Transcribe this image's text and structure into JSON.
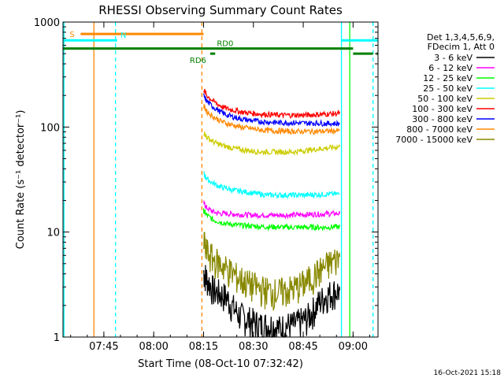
{
  "chart_data": {
    "type": "line",
    "title": "RHESSI Observing Summary Count Rates",
    "xlabel": "Start Time (08-Oct-10 07:32:42)",
    "ylabel": "Count Rate (s⁻¹ detector⁻¹)",
    "yscale": "log",
    "xrange": [
      "07:32:42",
      "09:07:30"
    ],
    "ylim": [
      1,
      1000
    ],
    "x_ticks": [
      "07:45",
      "08:00",
      "08:15",
      "08:30",
      "08:45",
      "09:00"
    ],
    "y_ticks": [
      "1",
      "10",
      "100",
      "1000"
    ],
    "legend": {
      "position": "right",
      "header": [
        "Det 1,3,4,5,6,9,",
        "FDecim 1, Att 0"
      ]
    },
    "data_gap": {
      "before": "08:15:00",
      "after": "08:56:30"
    },
    "series": [
      {
        "name": "3 - 6 keV",
        "color": "#000000",
        "x": [
          "08:15:00",
          "08:16:00",
          "08:18:00",
          "08:20:00",
          "08:22:00",
          "08:24:00",
          "08:26:00",
          "08:28:00",
          "08:30:00",
          "08:32:00",
          "08:34:00",
          "08:36:00",
          "08:38:00",
          "08:40:00",
          "08:42:00",
          "08:44:00",
          "08:46:00",
          "08:48:00",
          "08:50:00",
          "08:52:00",
          "08:54:00",
          "08:56:00"
        ],
        "values": [
          4.2,
          3.6,
          2.8,
          2.6,
          2.4,
          1.9,
          1.6,
          1.5,
          1.4,
          1.3,
          1.3,
          1.3,
          1.2,
          1.3,
          1.3,
          1.4,
          1.5,
          1.8,
          2.2,
          2.5,
          2.7,
          2.8
        ]
      },
      {
        "name": "6 - 12 keV",
        "color": "#ff00ff",
        "x": [
          "08:15:00",
          "08:16:00",
          "08:18:00",
          "08:20:00",
          "08:22:00",
          "08:24:00",
          "08:26:00",
          "08:28:00",
          "08:30:00",
          "08:32:00",
          "08:34:00",
          "08:36:00",
          "08:38:00",
          "08:40:00",
          "08:42:00",
          "08:44:00",
          "08:46:00",
          "08:48:00",
          "08:50:00",
          "08:52:00",
          "08:54:00",
          "08:56:00"
        ],
        "values": [
          19,
          17,
          15.5,
          15,
          15,
          14.8,
          14.7,
          14.6,
          14.5,
          14.5,
          14.5,
          14.5,
          14.5,
          14.5,
          14.5,
          14.6,
          14.7,
          14.8,
          14.8,
          14.9,
          15,
          15
        ]
      },
      {
        "name": "12 - 25 keV",
        "color": "#00ff00",
        "x": [
          "08:15:00",
          "08:16:00",
          "08:18:00",
          "08:20:00",
          "08:22:00",
          "08:24:00",
          "08:26:00",
          "08:28:00",
          "08:30:00",
          "08:32:00",
          "08:34:00",
          "08:36:00",
          "08:38:00",
          "08:40:00",
          "08:42:00",
          "08:44:00",
          "08:46:00",
          "08:48:00",
          "08:50:00",
          "08:52:00",
          "08:54:00",
          "08:56:00"
        ],
        "values": [
          16,
          14.5,
          13,
          12.5,
          12,
          11.8,
          11.6,
          11.5,
          11.4,
          11.3,
          11.2,
          11.2,
          11.2,
          11.1,
          11.1,
          11.1,
          11.1,
          11.1,
          11.1,
          11.1,
          11.2,
          11.2
        ]
      },
      {
        "name": "25 - 50 keV",
        "color": "#00ffff",
        "x": [
          "08:15:00",
          "08:16:00",
          "08:18:00",
          "08:20:00",
          "08:22:00",
          "08:24:00",
          "08:26:00",
          "08:28:00",
          "08:30:00",
          "08:32:00",
          "08:34:00",
          "08:36:00",
          "08:38:00",
          "08:40:00",
          "08:42:00",
          "08:44:00",
          "08:46:00",
          "08:48:00",
          "08:50:00",
          "08:52:00",
          "08:54:00",
          "08:56:00"
        ],
        "values": [
          36,
          32,
          29,
          27,
          26,
          25,
          24.5,
          24,
          23.5,
          23,
          22.5,
          22.5,
          22.5,
          22.5,
          22.5,
          22.5,
          22.5,
          22.7,
          22.8,
          23,
          23,
          23
        ]
      },
      {
        "name": "50 - 100 keV",
        "color": "#cccc00",
        "x": [
          "08:15:00",
          "08:16:00",
          "08:18:00",
          "08:20:00",
          "08:22:00",
          "08:24:00",
          "08:26:00",
          "08:28:00",
          "08:30:00",
          "08:32:00",
          "08:34:00",
          "08:36:00",
          "08:38:00",
          "08:40:00",
          "08:42:00",
          "08:44:00",
          "08:46:00",
          "08:48:00",
          "08:50:00",
          "08:52:00",
          "08:54:00",
          "08:56:00"
        ],
        "values": [
          90,
          80,
          72,
          68,
          65,
          63,
          61,
          60,
          59,
          58,
          58,
          58,
          58,
          58,
          58,
          59,
          60,
          61,
          62,
          63,
          64,
          65
        ]
      },
      {
        "name": "100 - 300 keV",
        "color": "#ff0000",
        "x": [
          "08:15:00",
          "08:16:00",
          "08:18:00",
          "08:20:00",
          "08:22:00",
          "08:24:00",
          "08:26:00",
          "08:28:00",
          "08:30:00",
          "08:32:00",
          "08:34:00",
          "08:36:00",
          "08:38:00",
          "08:40:00",
          "08:42:00",
          "08:44:00",
          "08:46:00",
          "08:48:00",
          "08:50:00",
          "08:52:00",
          "08:54:00",
          "08:56:00"
        ],
        "values": [
          230,
          200,
          175,
          160,
          150,
          145,
          140,
          137,
          135,
          133,
          132,
          131,
          130,
          130,
          130,
          130,
          130,
          131,
          132,
          133,
          134,
          135
        ]
      },
      {
        "name": "300 - 800 keV",
        "color": "#0000ff",
        "x": [
          "08:15:00",
          "08:16:00",
          "08:18:00",
          "08:20:00",
          "08:22:00",
          "08:24:00",
          "08:26:00",
          "08:28:00",
          "08:30:00",
          "08:32:00",
          "08:34:00",
          "08:36:00",
          "08:38:00",
          "08:40:00",
          "08:42:00",
          "08:44:00",
          "08:46:00",
          "08:48:00",
          "08:50:00",
          "08:52:00",
          "08:54:00",
          "08:56:00"
        ],
        "values": [
          200,
          175,
          155,
          140,
          130,
          125,
          120,
          117,
          115,
          113,
          112,
          111,
          110,
          110,
          110,
          109,
          109,
          109,
          109,
          108,
          108,
          108
        ]
      },
      {
        "name": "800 - 7000 keV",
        "color": "#ff8800",
        "x": [
          "08:15:00",
          "08:16:00",
          "08:18:00",
          "08:20:00",
          "08:22:00",
          "08:24:00",
          "08:26:00",
          "08:28:00",
          "08:30:00",
          "08:32:00",
          "08:34:00",
          "08:36:00",
          "08:38:00",
          "08:40:00",
          "08:42:00",
          "08:44:00",
          "08:46:00",
          "08:48:00",
          "08:50:00",
          "08:52:00",
          "08:54:00",
          "08:56:00"
        ],
        "values": [
          160,
          140,
          125,
          115,
          108,
          104,
          100,
          98,
          96,
          94,
          93,
          92,
          92,
          91,
          91,
          91,
          91,
          91,
          91,
          91,
          92,
          92
        ]
      },
      {
        "name": "7000 - 15000 keV",
        "color": "#888800",
        "x": [
          "08:15:00",
          "08:16:00",
          "08:18:00",
          "08:20:00",
          "08:22:00",
          "08:24:00",
          "08:26:00",
          "08:28:00",
          "08:30:00",
          "08:32:00",
          "08:34:00",
          "08:36:00",
          "08:38:00",
          "08:40:00",
          "08:42:00",
          "08:44:00",
          "08:46:00",
          "08:48:00",
          "08:50:00",
          "08:52:00",
          "08:54:00",
          "08:56:00"
        ],
        "values": [
          8,
          6.5,
          5.5,
          5,
          4.5,
          4,
          3.6,
          3.3,
          3.1,
          2.9,
          2.8,
          2.7,
          2.7,
          2.8,
          2.9,
          3.1,
          3.4,
          3.8,
          4.3,
          4.8,
          5.3,
          5.8
        ]
      }
    ],
    "status_flags": [
      {
        "label": "S",
        "color": "#ff8800",
        "intervals": [
          [
            "07:38:00",
            "08:15:00"
          ]
        ],
        "level": 770
      },
      {
        "label": "N",
        "color": "#00ffff",
        "intervals": [
          [
            "07:32:42",
            "07:49:00"
          ],
          [
            "08:56:30",
            "09:07:30"
          ]
        ],
        "level": 670
      },
      {
        "label": "RD0",
        "color": "#008000",
        "intervals": [
          [
            "07:32:42",
            "09:00:00"
          ]
        ],
        "level": 560
      },
      {
        "label": "RD6",
        "color": "#008000",
        "intervals": [
          [
            "08:17:00",
            "08:18:30"
          ],
          [
            "09:00:00",
            "09:06:00"
          ],
          [
            "09:07:00",
            "09:07:30"
          ]
        ],
        "level": 500
      }
    ],
    "vertical_markers": [
      {
        "x": "07:33:00",
        "color": "#00ffff",
        "style": "solid"
      },
      {
        "x": "07:42:00",
        "color": "#ff8800",
        "style": "solid"
      },
      {
        "x": "07:48:30",
        "color": "#00ffff",
        "style": "dashed"
      },
      {
        "x": "08:14:30",
        "color": "#ff8800",
        "style": "dashed"
      },
      {
        "x": "08:56:30",
        "color": "#00ffff",
        "style": "solid"
      },
      {
        "x": "08:59:00",
        "color": "#00ff00",
        "style": "solid"
      },
      {
        "x": "09:06:00",
        "color": "#00ffff",
        "style": "dashed"
      }
    ]
  },
  "footer": {
    "timestamp": "16-Oct-2021 15:18"
  }
}
